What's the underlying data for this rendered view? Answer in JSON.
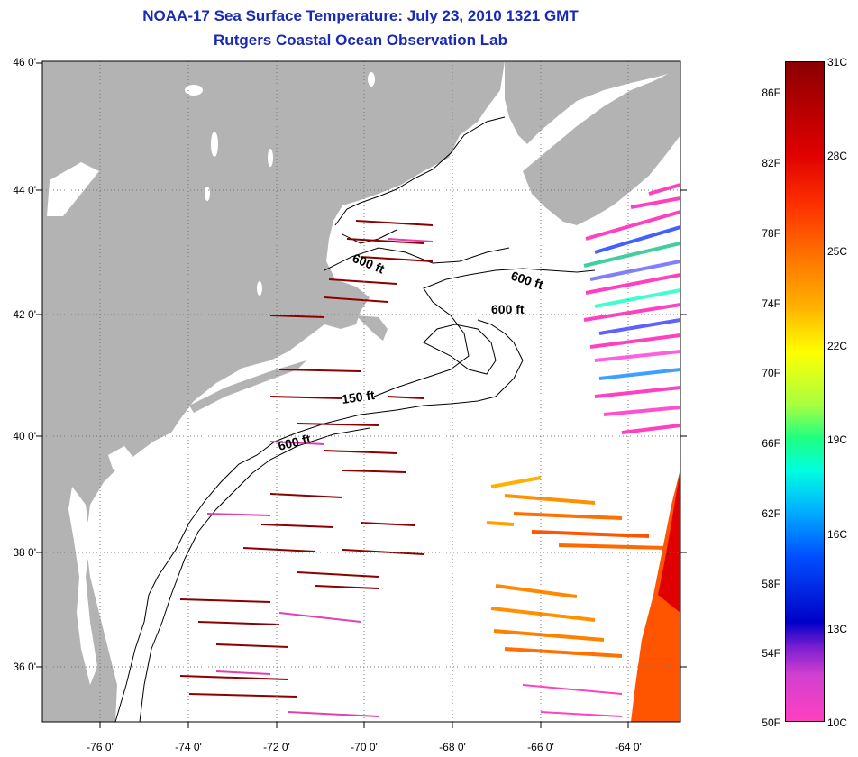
{
  "title": "NOAA-17 Sea Surface Temperature:  July 23, 2010 1321 GMT",
  "subtitle": "Rutgers Coastal Ocean Observation Lab",
  "axes": {
    "lat_labels": [
      "46 0'",
      "44 0'",
      "42 0'",
      "40 0'",
      "38 0'",
      "36 0'"
    ],
    "lon_labels": [
      "-76 0'",
      "-74 0'",
      "-72 0'",
      "-70 0'",
      "-68 0'",
      "-66 0'",
      "-64 0'"
    ]
  },
  "contours": [
    {
      "label": "600 ft"
    },
    {
      "label": "600 ft"
    },
    {
      "label": "600 ft"
    },
    {
      "label": "150 ft"
    },
    {
      "label": "600 ft"
    }
  ],
  "colorbar": {
    "fahrenheit": [
      "86F",
      "82F",
      "78F",
      "74F",
      "70F",
      "66F",
      "62F",
      "58F",
      "54F",
      "50F"
    ],
    "celsius": [
      "31C",
      "28C",
      "25C",
      "22C",
      "19C",
      "16C",
      "13C",
      "10C"
    ]
  },
  "colors": {
    "land": "#b3b3b3",
    "ocean": "#ffffff",
    "title": "#1a2bb3"
  }
}
